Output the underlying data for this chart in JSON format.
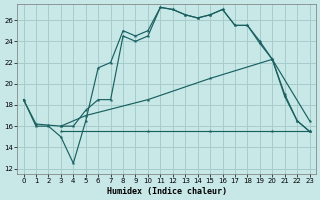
{
  "xlabel": "Humidex (Indice chaleur)",
  "background_color": "#c8e8e8",
  "grid_color": "#a8cccc",
  "line_color": "#1a6060",
  "xlim": [
    -0.5,
    23.5
  ],
  "ylim": [
    11.5,
    27.5
  ],
  "xticks": [
    0,
    1,
    2,
    3,
    4,
    5,
    6,
    7,
    8,
    9,
    10,
    11,
    12,
    13,
    14,
    15,
    16,
    17,
    18,
    19,
    20,
    21,
    22,
    23
  ],
  "yticks": [
    12,
    14,
    16,
    18,
    20,
    22,
    24,
    26
  ],
  "series": [
    {
      "x": [
        0,
        1,
        2,
        3,
        4,
        5,
        6,
        7,
        8,
        9,
        10,
        11,
        12,
        13,
        14,
        15,
        16,
        17,
        18,
        19,
        20,
        21,
        22,
        23
      ],
      "y": [
        18.5,
        16.0,
        16.0,
        15.0,
        12.5,
        16.5,
        21.5,
        22.0,
        25.0,
        24.5,
        25.0,
        27.2,
        27.0,
        26.5,
        26.2,
        26.5,
        27.0,
        25.5,
        25.5,
        23.8,
        22.3,
        19.0,
        16.5,
        15.5
      ]
    },
    {
      "x": [
        0,
        1,
        2,
        3,
        4,
        5,
        6,
        7,
        8,
        9,
        10,
        11,
        12,
        13,
        14,
        15,
        16,
        17,
        18,
        19,
        20,
        21,
        22,
        23
      ],
      "y": [
        18.5,
        16.2,
        16.1,
        16.0,
        16.0,
        17.5,
        18.5,
        18.5,
        24.5,
        24.0,
        24.5,
        27.2,
        27.0,
        26.5,
        26.2,
        26.5,
        27.0,
        25.5,
        25.5,
        24.0,
        22.3,
        18.8,
        16.5,
        15.5
      ]
    },
    {
      "x": [
        3,
        10,
        15,
        20,
        23
      ],
      "y": [
        15.5,
        15.5,
        15.5,
        15.5,
        15.5
      ]
    },
    {
      "x": [
        3,
        5,
        10,
        15,
        20,
        23
      ],
      "y": [
        16.0,
        17.0,
        18.5,
        20.5,
        22.3,
        16.5
      ]
    }
  ]
}
